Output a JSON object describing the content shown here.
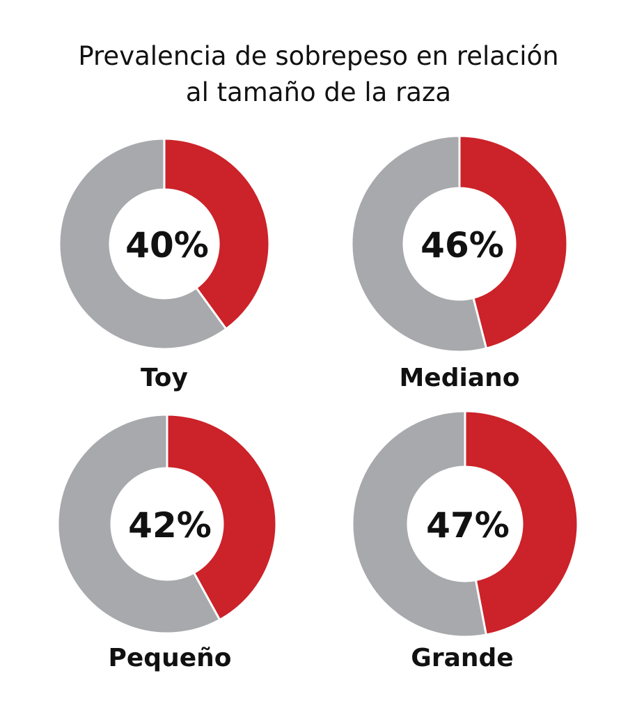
{
  "chart_data": {
    "type": "pie",
    "variant": "donut",
    "title_lines": [
      "Prevalencia de sobrepeso en relación",
      "al tamaño de la raza"
    ],
    "colors": {
      "highlight": "#cc2229",
      "rest": "#a7a9ac"
    },
    "charts": [
      {
        "category": "Toy",
        "value": 40,
        "label": "40%"
      },
      {
        "category": "Mediano",
        "value": 46,
        "label": "46%"
      },
      {
        "category": "Pequeño",
        "value": 42,
        "label": "42%"
      },
      {
        "category": "Grande",
        "value": 47,
        "label": "47%"
      }
    ]
  }
}
